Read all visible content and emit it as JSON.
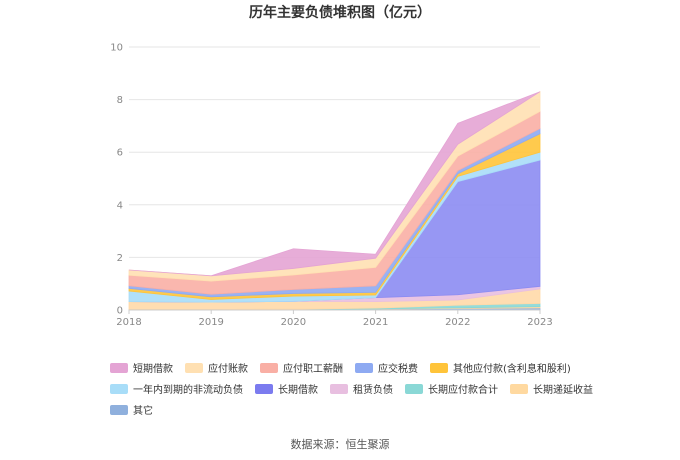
{
  "chart_data": {
    "type": "area",
    "stacked": true,
    "title": "历年主要负债堆积图（亿元）",
    "xlabel": "",
    "ylabel": "",
    "categories": [
      "2018",
      "2019",
      "2020",
      "2021",
      "2022",
      "2023"
    ],
    "ylim": [
      0,
      10
    ],
    "yticks": [
      0,
      2,
      4,
      6,
      8,
      10
    ],
    "grid": true,
    "legend_position": "bottom",
    "series": [
      {
        "name": "其它",
        "color": "#8fb0dd",
        "values": [
          0.02,
          0.02,
          0.03,
          0.04,
          0.06,
          0.08
        ]
      },
      {
        "name": "长期递延收益",
        "color": "#ffd9a0",
        "values": [
          0.0,
          0.0,
          0.0,
          0.0,
          0.02,
          0.05
        ]
      },
      {
        "name": "长期应付款合计",
        "color": "#8ad8d6",
        "values": [
          0.0,
          0.0,
          0.0,
          0.03,
          0.1,
          0.12
        ]
      },
      {
        "name": "租赁负债",
        "color": "#ffd9a8",
        "values": [
          0.3,
          0.28,
          0.3,
          0.25,
          0.2,
          0.55
        ]
      },
      {
        "name": "长期借款",
        "color": "#e8bfe0",
        "values": [
          0.0,
          0.0,
          0.0,
          0.15,
          0.2,
          0.1
        ]
      },
      {
        "name": "长期借款",
        "color": "#8c8cf2",
        "values": [
          0.0,
          0.0,
          0.0,
          0.0,
          4.3,
          4.8
        ]
      },
      {
        "name": "一年内到期的非流动负债",
        "color": "#a8ddf8",
        "values": [
          0.4,
          0.1,
          0.2,
          0.1,
          0.2,
          0.3
        ]
      },
      {
        "name": "其他应付款(含利息和股利)",
        "color": "#ffc43a",
        "values": [
          0.1,
          0.1,
          0.1,
          0.1,
          0.1,
          0.7
        ]
      },
      {
        "name": "应交税费",
        "color": "#8eaaf2",
        "values": [
          0.1,
          0.1,
          0.15,
          0.25,
          0.12,
          0.2
        ]
      },
      {
        "name": "应付职工薪酬",
        "color": "#f9afa5",
        "values": [
          0.4,
          0.5,
          0.55,
          0.7,
          0.55,
          0.65
        ]
      },
      {
        "name": "应付账款",
        "color": "#ffe0b2",
        "values": [
          0.2,
          0.2,
          0.25,
          0.35,
          0.45,
          0.75
        ]
      },
      {
        "name": "短期借款",
        "color": "#e4a4d4",
        "values": [
          0.0,
          0.0,
          0.75,
          0.15,
          0.8,
          0.0
        ]
      }
    ],
    "legend": [
      [
        "短期借款",
        "应付账款",
        "应付职工薪酬",
        "应交税费",
        "其他应付款(含利息和股利)"
      ],
      [
        "一年内到期的非流动负债",
        "长期借款",
        "租赁负债",
        "长期应付款合计",
        "长期递延收益"
      ],
      [
        "其它"
      ]
    ],
    "legend_colors": [
      [
        "#e4a4d4",
        "#ffe0b2",
        "#f9afa5",
        "#8eaaf2",
        "#ffc43a"
      ],
      [
        "#a8ddf8",
        "#7b7bef",
        "#e8bfe0",
        "#8ad8d6",
        "#ffd9a0"
      ],
      [
        "#8fb0dd"
      ]
    ]
  },
  "source": "数据来源：恒生聚源"
}
